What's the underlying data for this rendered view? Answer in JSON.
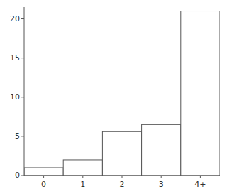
{
  "chart_data": {
    "type": "bar",
    "categories": [
      "0",
      "1",
      "2",
      "3",
      "4+"
    ],
    "values": [
      1.0,
      2.0,
      5.6,
      6.5,
      21.0
    ],
    "color": "#ffffff",
    "ylim": [
      0,
      21.5
    ],
    "yticks": [
      0,
      5,
      10,
      15,
      20
    ],
    "grid": false
  }
}
